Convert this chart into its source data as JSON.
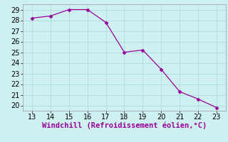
{
  "x": [
    13,
    14,
    15,
    16,
    17,
    18,
    19,
    20,
    21,
    22,
    23
  ],
  "y": [
    28.2,
    28.4,
    29.0,
    29.0,
    27.8,
    25.0,
    25.2,
    23.4,
    21.3,
    20.6,
    19.8
  ],
  "line_color": "#990099",
  "marker": "D",
  "marker_size": 2.5,
  "xlabel": "Windchill (Refroidissement éolien,°C)",
  "xlabel_color": "#990099",
  "xlabel_fontsize": 7.5,
  "xlim": [
    12.5,
    23.5
  ],
  "ylim": [
    19.5,
    29.5
  ],
  "xticks": [
    13,
    14,
    15,
    16,
    17,
    18,
    19,
    20,
    21,
    22,
    23
  ],
  "yticks": [
    20,
    21,
    22,
    23,
    24,
    25,
    26,
    27,
    28,
    29
  ],
  "tick_fontsize": 7,
  "background_color": "#cff0f0",
  "grid_color": "#aadddd",
  "spine_color": "#9999aa"
}
